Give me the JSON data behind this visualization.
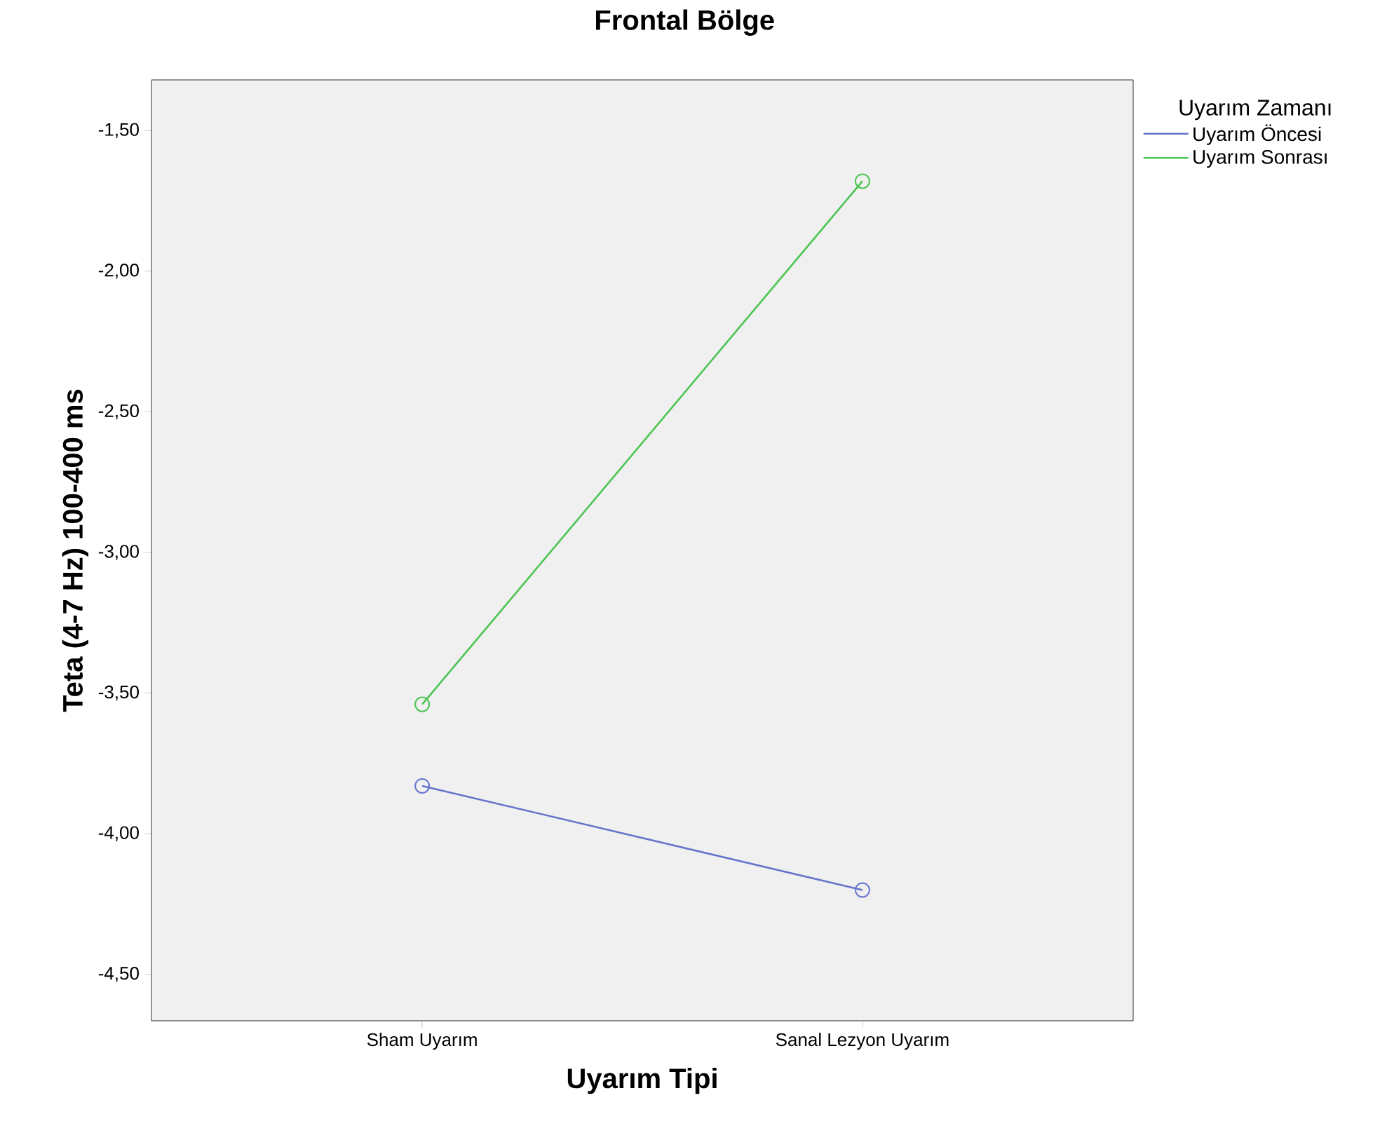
{
  "chart_data": {
    "type": "line",
    "title": "Frontal Bölge",
    "xlabel": "Uyarım Tipi",
    "ylabel": "Teta (4-7 Hz) 100-400 ms",
    "legend_title": "Uyarım Zamanı",
    "categories": [
      "Sham Uyarım",
      "Sanal Lezyon Uyarım"
    ],
    "series": [
      {
        "name": "Uyarım Öncesi",
        "color": "#6674cc",
        "values": [
          -3.83,
          -4.2
        ]
      },
      {
        "name": "Uyarım Sonrası",
        "color": "#4cc552",
        "values": [
          -3.54,
          -1.68
        ]
      }
    ],
    "ylim": [
      -4.665,
      -1.32
    ],
    "yticks": [
      {
        "value": -1.5,
        "label": "-1,50"
      },
      {
        "value": -2.0,
        "label": "-2,00"
      },
      {
        "value": -2.5,
        "label": "-2,50"
      },
      {
        "value": -3.0,
        "label": "-3,00"
      },
      {
        "value": -3.5,
        "label": "-3,50"
      },
      {
        "value": -4.0,
        "label": "-4,00"
      },
      {
        "value": -4.5,
        "label": "-4,50"
      }
    ],
    "grid": false,
    "legend": "top right",
    "marker": "circle",
    "line_style": "solid"
  }
}
